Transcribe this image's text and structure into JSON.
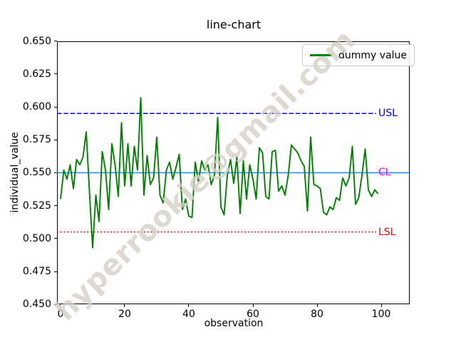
{
  "watermark": "hyperrookie@gmail.com",
  "chart_data": {
    "type": "line",
    "title": "line-chart",
    "xlabel": "observation",
    "ylabel": "individual_value",
    "xlim": [
      -1.1,
      109.1
    ],
    "ylim": [
      0.45,
      0.65
    ],
    "grid": false,
    "legend_position": "upper right",
    "x_ticks": [
      0,
      20,
      40,
      60,
      80,
      100
    ],
    "y_tick_labels": [
      "0.650",
      "0.625",
      "0.600",
      "0.575",
      "0.550",
      "0.525",
      "0.500",
      "0.475",
      "0.450"
    ],
    "series": [
      {
        "name": "dummy value",
        "color": "#008000",
        "values": [
          0.53,
          0.552,
          0.545,
          0.556,
          0.538,
          0.56,
          0.556,
          0.562,
          0.581,
          0.536,
          0.493,
          0.533,
          0.513,
          0.566,
          0.552,
          0.522,
          0.572,
          0.556,
          0.532,
          0.588,
          0.54,
          0.572,
          0.54,
          0.57,
          0.552,
          0.607,
          0.533,
          0.563,
          0.541,
          0.546,
          0.577,
          0.533,
          0.527,
          0.552,
          0.558,
          0.545,
          0.554,
          0.564,
          0.522,
          0.53,
          0.517,
          0.516,
          0.558,
          0.543,
          0.559,
          0.552,
          0.556,
          0.541,
          0.548,
          0.592,
          0.524,
          0.518,
          0.548,
          0.56,
          0.542,
          0.562,
          0.519,
          0.559,
          0.53,
          0.556,
          0.545,
          0.53,
          0.569,
          0.565,
          0.532,
          0.53,
          0.566,
          0.567,
          0.536,
          0.54,
          0.533,
          0.548,
          0.571,
          0.568,
          0.565,
          0.559,
          0.555,
          0.521,
          0.577,
          0.541,
          0.54,
          0.538,
          0.52,
          0.518,
          0.524,
          0.522,
          0.531,
          0.529,
          0.546,
          0.54,
          0.546,
          0.57,
          0.526,
          0.531,
          0.548,
          0.568,
          0.537,
          0.532,
          0.537,
          0.534
        ]
      }
    ],
    "control_lines": [
      {
        "name": "USL",
        "value": 0.595,
        "line_color": "#0000ee",
        "label_color": "#0000ee",
        "style": "dashed",
        "full_width": false
      },
      {
        "name": "CL",
        "value": 0.55,
        "line_color": "#1e90ff",
        "label_color": "#ff00ff",
        "style": "solid",
        "full_width": true
      },
      {
        "name": "LSL",
        "value": 0.505,
        "line_color": "#ff0000",
        "label_color": "#ff0000",
        "style": "dotted",
        "full_width": false
      }
    ]
  }
}
